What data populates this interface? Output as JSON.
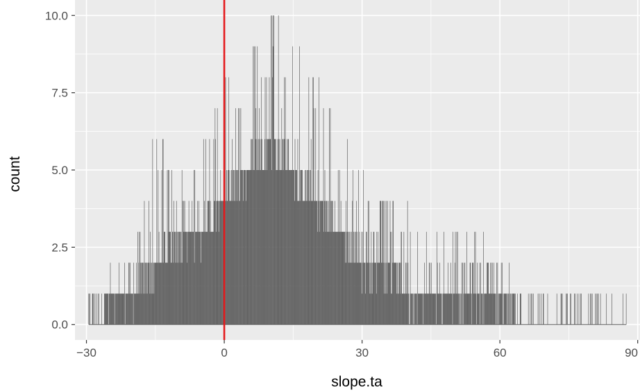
{
  "chart_data": {
    "type": "bar",
    "subtype": "histogram",
    "title": "",
    "xlabel": "slope.ta",
    "ylabel": "count",
    "xlim": [
      -32.5,
      90.5
    ],
    "ylim": [
      -0.5,
      10.5
    ],
    "x_ticks": [
      -30,
      0,
      30,
      60,
      90
    ],
    "x_tick_labels": [
      "−30",
      "0",
      "30",
      "60",
      "90"
    ],
    "y_ticks": [
      0,
      2.5,
      5,
      7.5,
      10
    ],
    "y_tick_labels": [
      "0.0",
      "2.5",
      "5.0",
      "7.5",
      "10.0"
    ],
    "grid": true,
    "bin_width": 0.1,
    "bar_color": "#595959",
    "panel_background": "#ebebeb",
    "reference_line": {
      "x": 0,
      "color": "#e41a1c"
    },
    "profile_note": "counts per bin follow envelope below; per-bin values approximate",
    "envelope": {
      "x": [
        -29.5,
        -25,
        -20,
        -15,
        -10,
        -5,
        0,
        5,
        10,
        15,
        20,
        25,
        30,
        35,
        40,
        45,
        50,
        55,
        60,
        65,
        70,
        75,
        80,
        85,
        87.5
      ],
      "max": [
        1,
        1,
        2,
        6,
        5,
        6,
        8,
        9,
        10,
        9,
        8,
        6,
        5,
        4,
        4,
        3,
        3,
        3,
        2,
        1,
        1,
        1,
        1,
        0,
        1
      ],
      "typical": [
        0,
        1,
        1,
        2,
        3,
        3,
        4,
        5,
        6,
        5,
        4,
        3,
        2,
        2,
        1,
        1,
        1,
        1,
        1,
        0,
        0,
        0,
        0,
        0,
        0
      ]
    }
  }
}
